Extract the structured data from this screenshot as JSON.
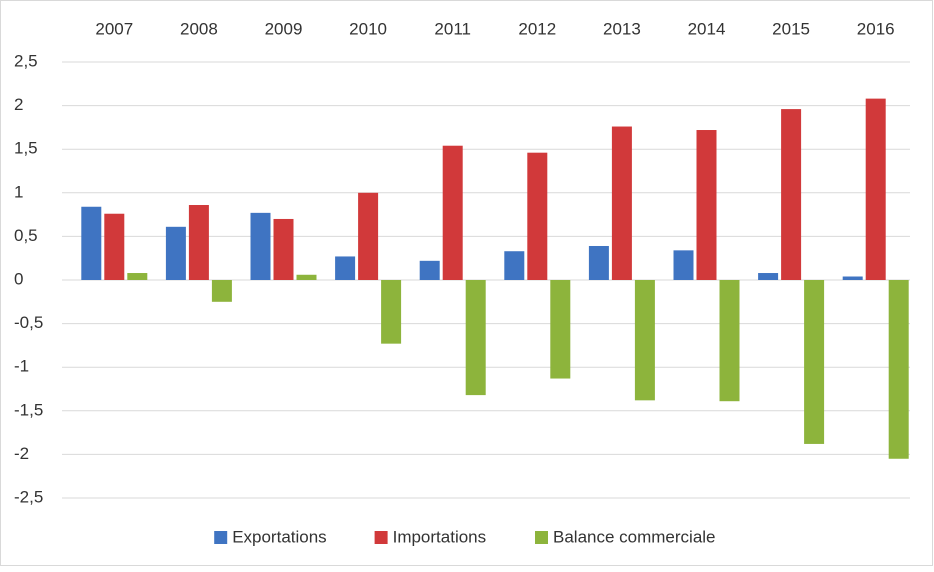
{
  "chart_data": {
    "type": "bar",
    "categories": [
      "2007",
      "2008",
      "2009",
      "2010",
      "2011",
      "2012",
      "2013",
      "2014",
      "2015",
      "2016"
    ],
    "series": [
      {
        "name": "Exportations",
        "color": "#3f74c2",
        "values": [
          0.84,
          0.61,
          0.77,
          0.27,
          0.22,
          0.33,
          0.39,
          0.34,
          0.08,
          0.04
        ]
      },
      {
        "name": "Importations",
        "color": "#d1393a",
        "values": [
          0.76,
          0.86,
          0.7,
          1.0,
          1.54,
          1.46,
          1.76,
          1.72,
          1.96,
          2.08
        ]
      },
      {
        "name": "Balance commerciale",
        "color": "#8db43c",
        "values": [
          0.08,
          -0.25,
          0.06,
          -0.73,
          -1.32,
          -1.13,
          -1.38,
          -1.39,
          -1.88,
          -2.05
        ]
      }
    ],
    "ylim": [
      -2.5,
      2.5
    ],
    "yticks": [
      {
        "value": 2.5,
        "label": "2,5"
      },
      2,
      {
        "value": 1.5,
        "label": "1,5"
      },
      1,
      {
        "value": 0.5,
        "label": "0,5"
      },
      0,
      {
        "value": -0.5,
        "label": "-0,5"
      },
      -1,
      {
        "value": -1.5,
        "label": "-1,5"
      },
      -2,
      {
        "value": -2.5,
        "label": "-2,5"
      }
    ],
    "grid": true,
    "legend": "bottom"
  }
}
